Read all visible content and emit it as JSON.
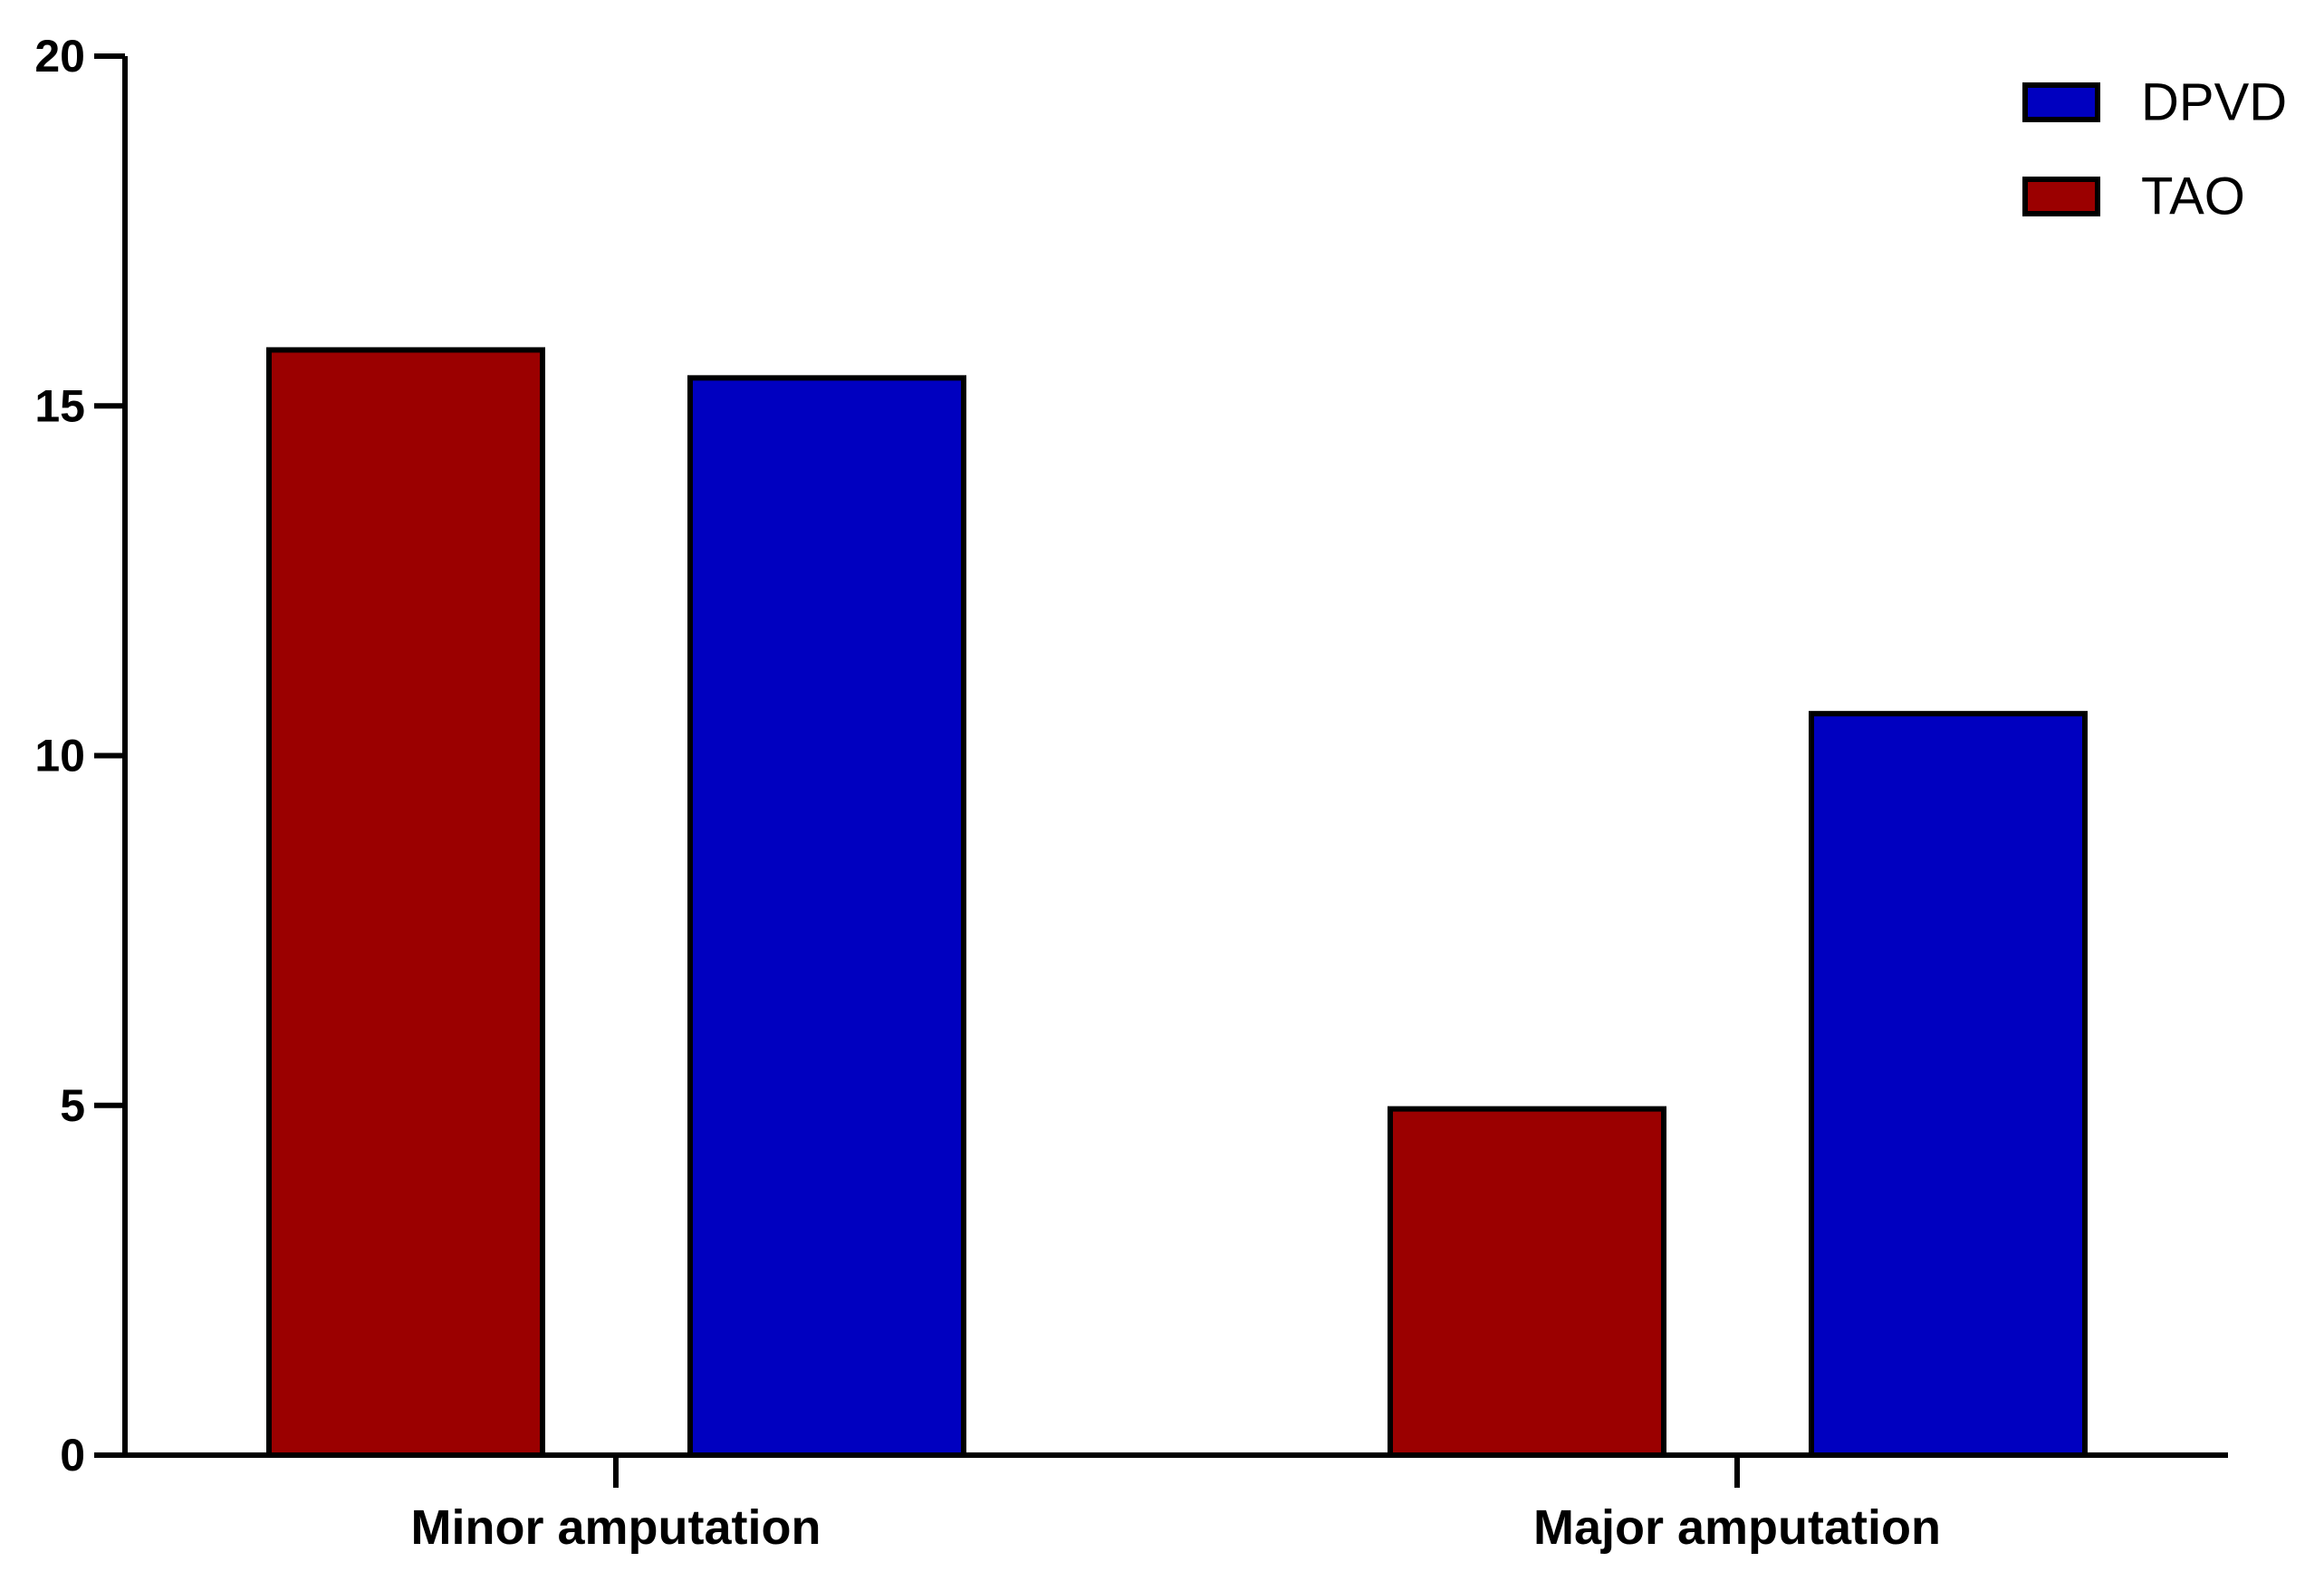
{
  "chart_data": {
    "type": "bar",
    "categories": [
      "Minor amputation",
      "Major amputation"
    ],
    "series": [
      {
        "name": "TAO",
        "color": "#9b0000",
        "values": [
          15.8,
          4.95
        ]
      },
      {
        "name": "DPVD",
        "color": "#0000c0",
        "values": [
          15.4,
          10.6
        ]
      }
    ],
    "legend_order": [
      "DPVD",
      "TAO"
    ],
    "legend_position": "top-right",
    "title": "",
    "xlabel": "",
    "ylabel": "",
    "ylim": [
      0,
      20
    ],
    "yticks": [
      "0",
      "5",
      "10",
      "15",
      "20"
    ],
    "grid": false
  }
}
